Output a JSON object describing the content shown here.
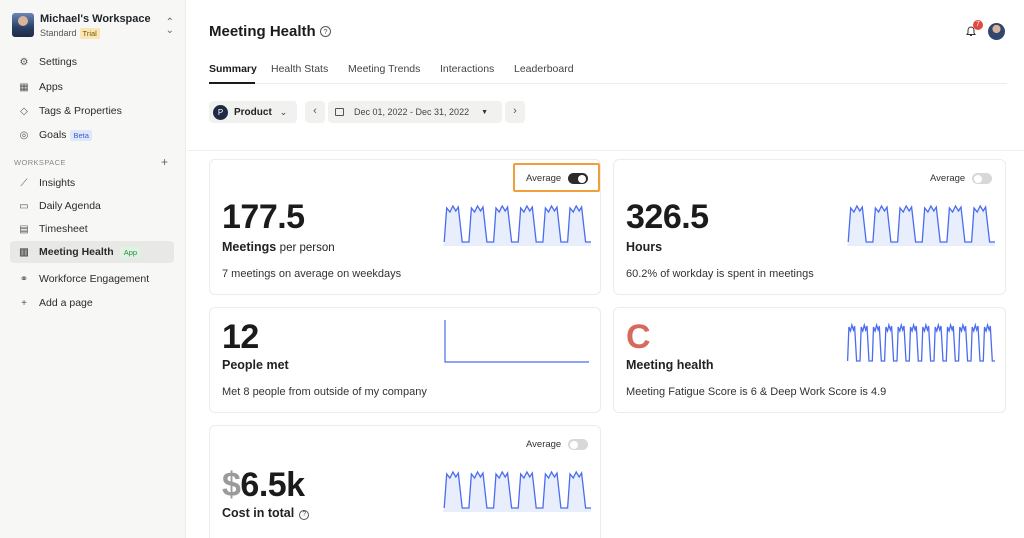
{
  "workspace": {
    "name": "Michael's Workspace",
    "plan": "Standard",
    "trial_badge": "Trial"
  },
  "sidebar": {
    "top_items": [
      {
        "label": "Settings",
        "icon": "gear-icon"
      },
      {
        "label": "Apps",
        "icon": "grid-icon"
      },
      {
        "label": "Tags & Properties",
        "icon": "tag-icon"
      },
      {
        "label": "Goals",
        "icon": "target-icon",
        "badge": "Beta"
      }
    ],
    "section_label": "WORKSPACE",
    "workspace_items": [
      {
        "label": "Insights",
        "icon": "chart-line-icon"
      },
      {
        "label": "Daily Agenda",
        "icon": "agenda-icon"
      },
      {
        "label": "Timesheet",
        "icon": "table-icon"
      },
      {
        "label": "Meeting Health",
        "icon": "bar-chart-icon",
        "badge": "App",
        "active": true
      },
      {
        "label": "Workforce Engagement",
        "icon": "people-icon"
      },
      {
        "label": "Add a page",
        "icon": "plus-icon"
      }
    ]
  },
  "header": {
    "title": "Meeting Health",
    "notification_count": "7"
  },
  "tabs": [
    "Summary",
    "Health Stats",
    "Meeting Trends",
    "Interactions",
    "Leaderboard"
  ],
  "filters": {
    "product_initial": "P",
    "product_label": "Product",
    "date_range": "Dec 01, 2022 - Dec 31, 2022"
  },
  "cards": {
    "meetings": {
      "toggle_label": "Average",
      "toggle_on": true,
      "value": "177.5",
      "label": "Meetings",
      "label_suffix": "per person",
      "subtext": "7 meetings on average on weekdays"
    },
    "hours": {
      "toggle_label": "Average",
      "toggle_on": false,
      "value": "326.5",
      "label": "Hours",
      "subtext": "60.2% of workday is spent in meetings"
    },
    "people": {
      "value": "12",
      "label": "People met",
      "subtext": "Met 8 people from outside of my company"
    },
    "health": {
      "value": "C",
      "label": "Meeting health",
      "subtext": "Meeting Fatigue Score is 6 & Deep Work Score is 4.9"
    },
    "cost": {
      "toggle_label": "Average",
      "toggle_on": false,
      "currency": "$",
      "value": "6.5k",
      "label": "Cost in total"
    }
  },
  "colors": {
    "accent": "#2b2b2b",
    "spark_line": "#4a6cf0",
    "spark_fill": "#e9eefc",
    "highlight": "#f0a03a",
    "grade_c": "#d66a5b"
  }
}
